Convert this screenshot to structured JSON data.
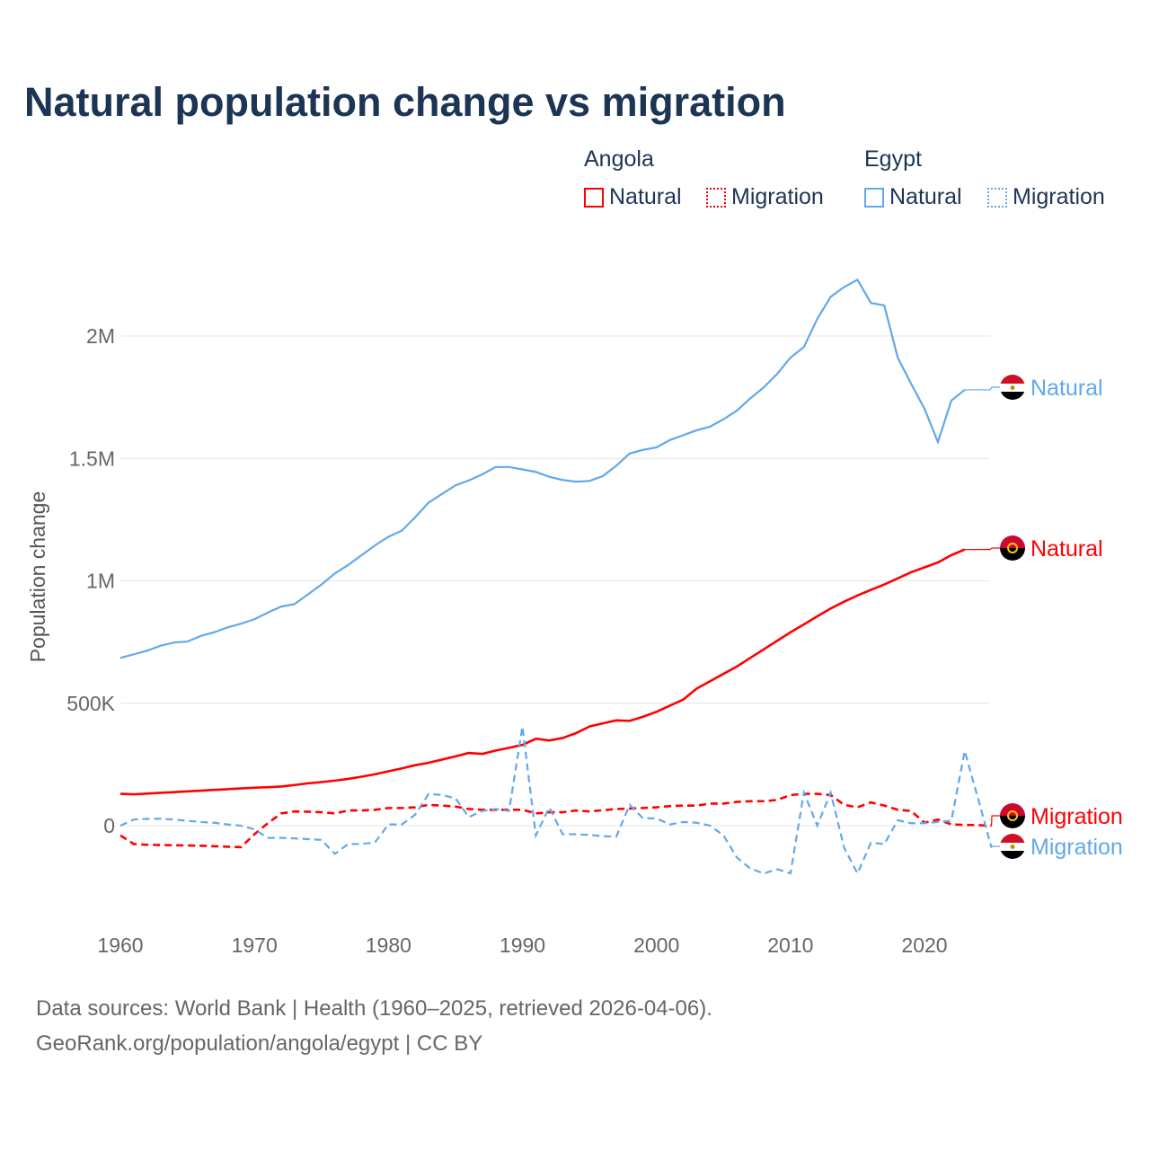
{
  "chart_data": {
    "type": "line",
    "title": "Natural population change vs migration",
    "ylabel": "Population change",
    "xlabel": "",
    "ylim": [
      -350000,
      2300000
    ],
    "xlim": [
      1960,
      2025
    ],
    "y_ticks": [
      {
        "v": 0,
        "label": "0"
      },
      {
        "v": 500000,
        "label": "500K"
      },
      {
        "v": 1000000,
        "label": "1M"
      },
      {
        "v": 1500000,
        "label": "1.5M"
      },
      {
        "v": 2000000,
        "label": "2M"
      }
    ],
    "x_ticks": [
      1960,
      1970,
      1980,
      1990,
      2000,
      2010,
      2020
    ],
    "grid": true,
    "legend_position": "top-right",
    "legend": {
      "groups": [
        {
          "country": "Angola",
          "items": [
            {
              "label": "Natural"
            },
            {
              "label": "Migration"
            }
          ]
        },
        {
          "country": "Egypt",
          "items": [
            {
              "label": "Natural"
            },
            {
              "label": "Migration"
            }
          ]
        }
      ]
    },
    "colors": {
      "Angola": "#ff0000",
      "Egypt": "#62a8ea"
    },
    "units": "thousands",
    "series": [
      {
        "name": "Egypt Natural",
        "country": "Egypt",
        "kind": "Natural",
        "start": 1960,
        "end_label": "Natural",
        "values": [
          685,
          700,
          715,
          735,
          748,
          752,
          775,
          790,
          810,
          825,
          843,
          870,
          895,
          905,
          945,
          985,
          1030,
          1065,
          1105,
          1145,
          1180,
          1205,
          1260,
          1320,
          1355,
          1390,
          1410,
          1435,
          1465,
          1465,
          1455,
          1445,
          1425,
          1412,
          1405,
          1408,
          1428,
          1470,
          1520,
          1535,
          1545,
          1575,
          1595,
          1615,
          1630,
          1660,
          1695,
          1745,
          1790,
          1845,
          1912,
          1955,
          2070,
          2160,
          2200,
          2230,
          2135,
          2125,
          1912,
          1805,
          1703,
          1567,
          1736,
          1780
        ]
      },
      {
        "name": "Angola Natural",
        "country": "Angola",
        "kind": "Natural",
        "start": 1960,
        "end_label": "Natural",
        "values": [
          130,
          128,
          131,
          134,
          137,
          140,
          143,
          146,
          149,
          152,
          155,
          157,
          160,
          166,
          173,
          178,
          184,
          191,
          200,
          210,
          222,
          234,
          247,
          257,
          270,
          283,
          297,
          293,
          307,
          318,
          330,
          355,
          348,
          358,
          378,
          405,
          418,
          430,
          428,
          445,
          465,
          490,
          515,
          560,
          590,
          620,
          650,
          685,
          720,
          755,
          790,
          822,
          855,
          887,
          915,
          940,
          963,
          985,
          1010,
          1035,
          1055,
          1075,
          1105,
          1128
        ]
      },
      {
        "name": "Angola Migration",
        "country": "Angola",
        "kind": "Migration",
        "start": 1960,
        "end_label": "Migration",
        "values": [
          -40,
          -75,
          -78,
          -79,
          -80,
          -81,
          -82,
          -84,
          -86,
          -88,
          -35,
          10,
          50,
          58,
          57,
          55,
          50,
          62,
          62,
          65,
          72,
          72,
          75,
          85,
          82,
          78,
          68,
          65,
          65,
          65,
          65,
          50,
          55,
          55,
          62,
          58,
          63,
          68,
          70,
          72,
          75,
          80,
          82,
          82,
          90,
          90,
          97,
          100,
          100,
          105,
          125,
          130,
          130,
          125,
          85,
          75,
          95,
          82,
          65,
          60,
          12,
          25,
          5,
          3,
          2,
          0
        ]
      },
      {
        "name": "Egypt Migration",
        "country": "Egypt",
        "kind": "Migration",
        "start": 1960,
        "end_label": "Migration",
        "values": [
          0,
          25,
          28,
          28,
          25,
          20,
          15,
          12,
          5,
          0,
          -15,
          -50,
          -50,
          -52,
          -55,
          -58,
          -115,
          -75,
          -75,
          -68,
          5,
          5,
          45,
          130,
          125,
          112,
          35,
          60,
          68,
          60,
          405,
          -40,
          75,
          -35,
          -35,
          -38,
          -43,
          -45,
          85,
          30,
          30,
          5,
          15,
          12,
          0,
          -40,
          -130,
          -175,
          -195,
          -178,
          -195,
          135,
          0,
          135,
          -90,
          -195,
          -70,
          -75,
          22,
          10,
          10,
          15,
          20,
          305,
          110,
          -90
        ]
      }
    ]
  },
  "footer": {
    "line1": "Data sources: World Bank | Health (1960–2025, retrieved 2026-04-06).",
    "line2": "GeoRank.org/population/angola/egypt | CC BY"
  }
}
